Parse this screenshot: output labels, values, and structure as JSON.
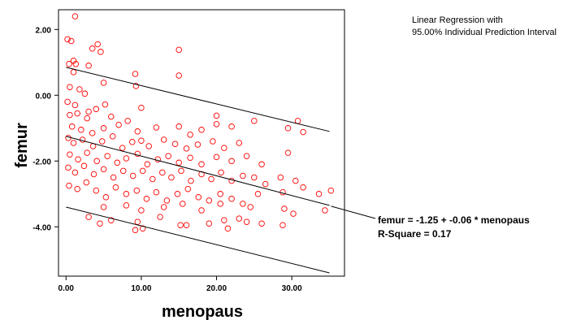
{
  "chart_data": {
    "type": "scatter",
    "title": "",
    "xlabel": "menopaus",
    "ylabel": "femur",
    "xlim": [
      -1,
      37
    ],
    "ylim": [
      -5.5,
      2.6
    ],
    "x_ticks": [
      0,
      10,
      20,
      30
    ],
    "x_tick_labels": [
      "0.00",
      "10.00",
      "20.00",
      "30.00"
    ],
    "y_ticks": [
      -4,
      -2,
      0,
      2
    ],
    "y_tick_labels": [
      "-4.00",
      "-2.00",
      "0.00",
      "2.00"
    ],
    "legend": {
      "line1": "Linear Regression with",
      "line2": "95.00% Individual Prediction Interval"
    },
    "fit_equation": "femur = -1.25 + -0.06 * menopaus",
    "r_square": "R-Square = 0.17",
    "regression": {
      "intercept": -1.25,
      "slope": -0.06
    },
    "prediction_interval_lower": [
      [
        0,
        -3.4
      ],
      [
        35,
        -5.4
      ]
    ],
    "prediction_interval_upper": [
      [
        0,
        0.85
      ],
      [
        35,
        -1.1
      ]
    ],
    "marker_color": "#ff0000",
    "series": [
      {
        "points": [
          [
            1.2,
            2.4
          ],
          [
            0.2,
            1.7
          ],
          [
            0.7,
            1.65
          ],
          [
            4.2,
            1.55
          ],
          [
            3.5,
            1.42
          ],
          [
            15,
            1.38
          ],
          [
            4.6,
            1.32
          ],
          [
            0.4,
            0.95
          ],
          [
            1,
            1.05
          ],
          [
            1.3,
            0.95
          ],
          [
            3,
            0.9
          ],
          [
            9.2,
            0.65
          ],
          [
            15,
            0.6
          ],
          [
            1,
            0.7
          ],
          [
            5,
            0.38
          ],
          [
            0.5,
            0.25
          ],
          [
            1.8,
            0.18
          ],
          [
            9.3,
            0.28
          ],
          [
            2.5,
            0.05
          ],
          [
            0.2,
            -0.2
          ],
          [
            1.2,
            -0.3
          ],
          [
            3,
            -0.5
          ],
          [
            4,
            -0.42
          ],
          [
            5.2,
            -0.28
          ],
          [
            0.5,
            -0.6
          ],
          [
            1.5,
            -0.55
          ],
          [
            2.8,
            -0.7
          ],
          [
            6,
            -0.65
          ],
          [
            10,
            -0.38
          ],
          [
            20,
            -0.62
          ],
          [
            30.8,
            -0.78
          ],
          [
            29.5,
            -1.0
          ],
          [
            31.5,
            -1.12
          ],
          [
            0.8,
            -0.95
          ],
          [
            2,
            -1.05
          ],
          [
            3.5,
            -1.15
          ],
          [
            5,
            -1.0
          ],
          [
            7,
            -0.9
          ],
          [
            8.2,
            -0.78
          ],
          [
            9.5,
            -1.1
          ],
          [
            12,
            -0.98
          ],
          [
            15,
            -0.95
          ],
          [
            16.5,
            -1.2
          ],
          [
            18,
            -1.05
          ],
          [
            20,
            -0.88
          ],
          [
            22,
            -0.95
          ],
          [
            25,
            -0.78
          ],
          [
            0.3,
            -1.3
          ],
          [
            1,
            -1.45
          ],
          [
            2.2,
            -1.35
          ],
          [
            3.6,
            -1.55
          ],
          [
            4.8,
            -1.4
          ],
          [
            6.2,
            -1.25
          ],
          [
            7.5,
            -1.6
          ],
          [
            8.8,
            -1.42
          ],
          [
            10,
            -1.38
          ],
          [
            11,
            -1.55
          ],
          [
            13,
            -1.35
          ],
          [
            14.5,
            -1.48
          ],
          [
            16,
            -1.62
          ],
          [
            17.5,
            -1.5
          ],
          [
            19.5,
            -1.4
          ],
          [
            21,
            -1.6
          ],
          [
            23,
            -1.45
          ],
          [
            0.5,
            -1.8
          ],
          [
            1.6,
            -1.95
          ],
          [
            2.8,
            -1.75
          ],
          [
            4.1,
            -2.0
          ],
          [
            5.5,
            -1.85
          ],
          [
            6.8,
            -2.05
          ],
          [
            8,
            -1.92
          ],
          [
            9.5,
            -1.78
          ],
          [
            10.8,
            -2.1
          ],
          [
            12.2,
            -1.95
          ],
          [
            13.6,
            -1.85
          ],
          [
            15,
            -2.05
          ],
          [
            16.5,
            -1.9
          ],
          [
            18,
            -2.1
          ],
          [
            20,
            -1.88
          ],
          [
            22,
            -2.0
          ],
          [
            24,
            -1.85
          ],
          [
            26,
            -2.1
          ],
          [
            29.5,
            -1.75
          ],
          [
            0.3,
            -2.2
          ],
          [
            1.2,
            -2.35
          ],
          [
            2.4,
            -2.15
          ],
          [
            3.7,
            -2.4
          ],
          [
            5,
            -2.25
          ],
          [
            6.3,
            -2.5
          ],
          [
            7.6,
            -2.3
          ],
          [
            8.9,
            -2.45
          ],
          [
            10.2,
            -2.3
          ],
          [
            11.5,
            -2.55
          ],
          [
            12.8,
            -2.35
          ],
          [
            14,
            -2.5
          ],
          [
            15.3,
            -2.3
          ],
          [
            16.6,
            -2.6
          ],
          [
            18,
            -2.4
          ],
          [
            19.3,
            -2.55
          ],
          [
            20.6,
            -2.35
          ],
          [
            22,
            -2.6
          ],
          [
            23.5,
            -2.45
          ],
          [
            25,
            -2.5
          ],
          [
            26.5,
            -2.7
          ],
          [
            28.5,
            -2.5
          ],
          [
            30.5,
            -2.6
          ],
          [
            0.4,
            -2.75
          ],
          [
            1.5,
            -2.85
          ],
          [
            2.7,
            -2.65
          ],
          [
            4,
            -2.9
          ],
          [
            5.3,
            -3.1
          ],
          [
            6.6,
            -2.8
          ],
          [
            8,
            -3.0
          ],
          [
            9.4,
            -2.9
          ],
          [
            10.7,
            -3.15
          ],
          [
            12,
            -2.95
          ],
          [
            13.4,
            -3.2
          ],
          [
            14.8,
            -3.0
          ],
          [
            16.2,
            -2.85
          ],
          [
            17.6,
            -3.1
          ],
          [
            19,
            -3.2
          ],
          [
            20.5,
            -3.0
          ],
          [
            22,
            -3.15
          ],
          [
            23.5,
            -3.3
          ],
          [
            25.5,
            -3.0
          ],
          [
            28.8,
            -2.95
          ],
          [
            31.5,
            -2.8
          ],
          [
            33.6,
            -3.0
          ],
          [
            35.2,
            -2.9
          ],
          [
            5,
            -3.4
          ],
          [
            8,
            -3.35
          ],
          [
            10,
            -3.5
          ],
          [
            13,
            -3.4
          ],
          [
            15.5,
            -3.3
          ],
          [
            18,
            -3.5
          ],
          [
            20.5,
            -3.3
          ],
          [
            24.5,
            -3.4
          ],
          [
            29,
            -3.45
          ],
          [
            30.2,
            -3.6
          ],
          [
            34.4,
            -3.5
          ],
          [
            3,
            -3.7
          ],
          [
            6,
            -3.8
          ],
          [
            9.5,
            -3.85
          ],
          [
            12.5,
            -3.7
          ],
          [
            15.2,
            -3.95
          ],
          [
            19,
            -3.9
          ],
          [
            21,
            -3.8
          ],
          [
            23,
            -3.75
          ],
          [
            26,
            -3.9
          ],
          [
            4.5,
            -3.9
          ],
          [
            9.2,
            -4.1
          ],
          [
            10.2,
            -4.05
          ],
          [
            16,
            -3.95
          ],
          [
            21.5,
            -4.05
          ],
          [
            24,
            -3.85
          ],
          [
            28.8,
            -3.95
          ]
        ]
      }
    ]
  }
}
